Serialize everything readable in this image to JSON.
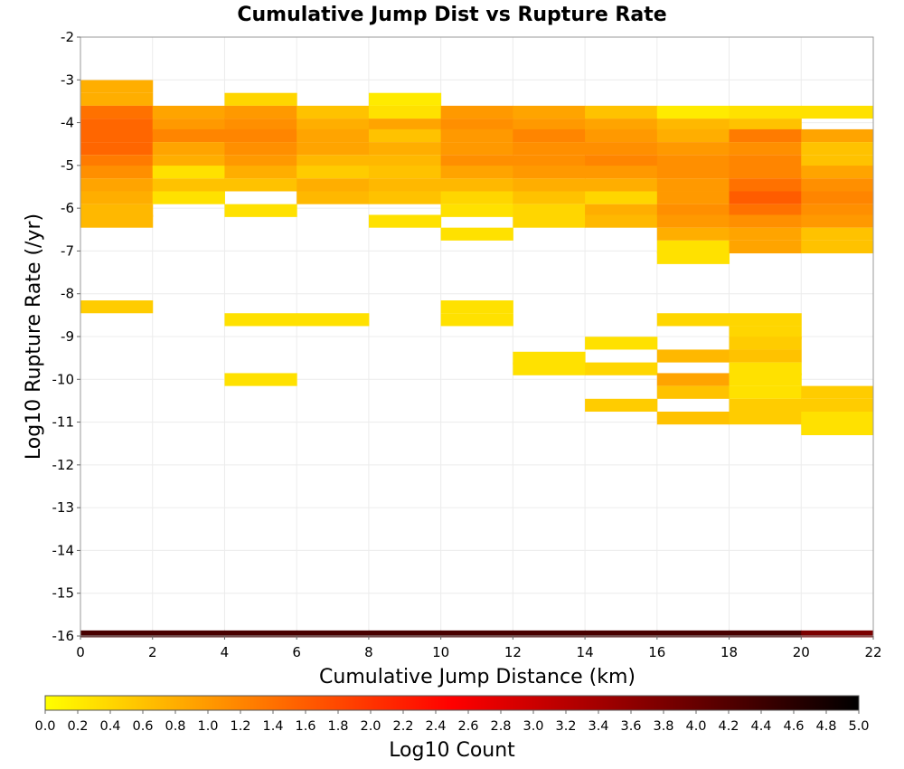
{
  "chart_data": {
    "type": "heatmap",
    "title": "Cumulative Jump Dist vs Rupture Rate",
    "xlabel": "Cumulative Jump Distance (km)",
    "ylabel": "Log10 Rupture Rate (/yr)",
    "xlim": [
      0,
      22
    ],
    "ylim": [
      -16,
      -2
    ],
    "x_ticks": [
      "0",
      "2",
      "4",
      "6",
      "8",
      "10",
      "12",
      "14",
      "16",
      "18",
      "20",
      "22"
    ],
    "y_ticks": [
      "-2",
      "-3",
      "-4",
      "-5",
      "-6",
      "-7",
      "-8",
      "-9",
      "-10",
      "-11",
      "-12",
      "-13",
      "-14",
      "-15",
      "-16"
    ],
    "grid": true,
    "x_bin_width": 2,
    "y_bin_height": 0.29,
    "colorbar": {
      "label": "Log10 Count",
      "range": [
        0,
        5
      ],
      "ticks": [
        "0.0",
        "0.2",
        "0.4",
        "0.6",
        "0.8",
        "1.0",
        "1.2",
        "1.4",
        "1.6",
        "1.8",
        "2.0",
        "2.2",
        "2.4",
        "2.6",
        "2.8",
        "3.0",
        "3.2",
        "3.4",
        "3.6",
        "3.8",
        "4.0",
        "4.2",
        "4.4",
        "4.6",
        "4.8",
        "5.0"
      ],
      "colors": [
        "#ffff00",
        "#ff8000",
        "#ff0000",
        "#800000",
        "#000000"
      ]
    },
    "columns": [
      {
        "x": 0,
        "cells": [
          [
            -3.15,
            0.8
          ],
          [
            -3.45,
            0.8
          ],
          [
            -3.75,
            1.4
          ],
          [
            -4.05,
            1.5
          ],
          [
            -4.3,
            1.5
          ],
          [
            -4.6,
            1.5
          ],
          [
            -4.9,
            1.3
          ],
          [
            -5.15,
            1.1
          ],
          [
            -5.45,
            0.9
          ],
          [
            -5.75,
            0.8
          ],
          [
            -6.05,
            0.7
          ],
          [
            -6.3,
            0.7
          ],
          [
            -8.3,
            0.5
          ]
        ]
      },
      {
        "x": 2,
        "cells": [
          [
            -3.75,
            0.9
          ],
          [
            -4.05,
            1.0
          ],
          [
            -4.3,
            1.2
          ],
          [
            -4.6,
            0.9
          ],
          [
            -4.9,
            0.8
          ],
          [
            -5.15,
            0.3
          ],
          [
            -5.45,
            0.6
          ],
          [
            -5.75,
            0.3
          ]
        ]
      },
      {
        "x": 4,
        "cells": [
          [
            -3.45,
            0.4
          ],
          [
            -3.75,
            1.0
          ],
          [
            -4.05,
            1.1
          ],
          [
            -4.3,
            1.2
          ],
          [
            -4.6,
            1.1
          ],
          [
            -4.9,
            1.0
          ],
          [
            -5.15,
            0.8
          ],
          [
            -5.45,
            0.6
          ],
          [
            -6.05,
            0.3
          ],
          [
            -8.6,
            0.3
          ],
          [
            -10.0,
            0.3
          ]
        ]
      },
      {
        "x": 6,
        "cells": [
          [
            -3.75,
            0.6
          ],
          [
            -4.05,
            0.8
          ],
          [
            -4.3,
            0.9
          ],
          [
            -4.6,
            0.9
          ],
          [
            -4.9,
            0.7
          ],
          [
            -5.15,
            0.5
          ],
          [
            -5.45,
            0.8
          ],
          [
            -5.75,
            0.7
          ],
          [
            -8.6,
            0.3
          ]
        ]
      },
      {
        "x": 8,
        "cells": [
          [
            -3.45,
            0.2
          ],
          [
            -3.75,
            0.3
          ],
          [
            -4.05,
            0.9
          ],
          [
            -4.3,
            0.6
          ],
          [
            -4.6,
            0.8
          ],
          [
            -4.9,
            0.7
          ],
          [
            -5.15,
            0.6
          ],
          [
            -5.45,
            0.7
          ],
          [
            -5.75,
            0.6
          ],
          [
            -6.3,
            0.3
          ]
        ]
      },
      {
        "x": 10,
        "cells": [
          [
            -3.75,
            1.0
          ],
          [
            -4.05,
            1.1
          ],
          [
            -4.3,
            1.0
          ],
          [
            -4.6,
            1.0
          ],
          [
            -4.9,
            1.1
          ],
          [
            -5.15,
            0.9
          ],
          [
            -5.45,
            0.7
          ],
          [
            -5.75,
            0.4
          ],
          [
            -6.05,
            0.3
          ],
          [
            -6.6,
            0.3
          ],
          [
            -8.3,
            0.3
          ],
          [
            -8.6,
            0.3
          ]
        ]
      },
      {
        "x": 12,
        "cells": [
          [
            -3.75,
            0.9
          ],
          [
            -4.05,
            1.0
          ],
          [
            -4.3,
            1.2
          ],
          [
            -4.6,
            1.1
          ],
          [
            -4.9,
            1.1
          ],
          [
            -5.15,
            1.0
          ],
          [
            -5.45,
            0.8
          ],
          [
            -5.75,
            0.6
          ],
          [
            -6.05,
            0.4
          ],
          [
            -6.3,
            0.4
          ],
          [
            -9.5,
            0.3
          ],
          [
            -9.75,
            0.3
          ]
        ]
      },
      {
        "x": 14,
        "cells": [
          [
            -3.75,
            0.6
          ],
          [
            -4.05,
            0.9
          ],
          [
            -4.3,
            1.0
          ],
          [
            -4.6,
            1.1
          ],
          [
            -4.9,
            1.2
          ],
          [
            -5.15,
            1.0
          ],
          [
            -5.45,
            0.8
          ],
          [
            -5.75,
            0.4
          ],
          [
            -6.05,
            0.8
          ],
          [
            -6.3,
            0.7
          ],
          [
            -9.15,
            0.3
          ],
          [
            -9.75,
            0.4
          ],
          [
            -10.6,
            0.5
          ]
        ]
      },
      {
        "x": 16,
        "cells": [
          [
            -3.75,
            0.2
          ],
          [
            -4.05,
            0.7
          ],
          [
            -4.3,
            0.8
          ],
          [
            -4.6,
            1.0
          ],
          [
            -4.9,
            1.1
          ],
          [
            -5.15,
            1.1
          ],
          [
            -5.45,
            1.0
          ],
          [
            -5.75,
            1.0
          ],
          [
            -6.05,
            1.1
          ],
          [
            -6.3,
            1.0
          ],
          [
            -6.6,
            0.8
          ],
          [
            -6.9,
            0.3
          ],
          [
            -7.15,
            0.3
          ],
          [
            -8.6,
            0.4
          ],
          [
            -9.45,
            0.7
          ],
          [
            -10.0,
            0.9
          ],
          [
            -10.3,
            0.6
          ],
          [
            -10.9,
            0.6
          ]
        ]
      },
      {
        "x": 18,
        "cells": [
          [
            -3.75,
            0.3
          ],
          [
            -4.05,
            0.6
          ],
          [
            -4.3,
            1.3
          ],
          [
            -4.6,
            1.1
          ],
          [
            -4.9,
            1.2
          ],
          [
            -5.15,
            1.2
          ],
          [
            -5.45,
            1.4
          ],
          [
            -5.75,
            1.6
          ],
          [
            -6.05,
            1.4
          ],
          [
            -6.3,
            1.1
          ],
          [
            -6.6,
            0.9
          ],
          [
            -6.9,
            0.9
          ],
          [
            -8.6,
            0.4
          ],
          [
            -8.9,
            0.4
          ],
          [
            -9.15,
            0.5
          ],
          [
            -9.45,
            0.6
          ],
          [
            -9.75,
            0.3
          ],
          [
            -10.0,
            0.3
          ],
          [
            -10.3,
            0.3
          ],
          [
            -10.6,
            0.5
          ],
          [
            -10.9,
            0.5
          ]
        ]
      },
      {
        "x": 20,
        "cells": [
          [
            -3.75,
            0.3
          ],
          [
            -4.3,
            0.9
          ],
          [
            -4.6,
            0.6
          ],
          [
            -4.9,
            0.6
          ],
          [
            -5.15,
            0.9
          ],
          [
            -5.45,
            1.1
          ],
          [
            -5.75,
            1.2
          ],
          [
            -6.05,
            1.1
          ],
          [
            -6.3,
            1.0
          ],
          [
            -6.6,
            0.6
          ],
          [
            -6.9,
            0.6
          ],
          [
            -10.3,
            0.5
          ],
          [
            -10.6,
            0.5
          ],
          [
            -10.9,
            0.3
          ],
          [
            -11.15,
            0.3
          ]
        ]
      }
    ],
    "baseline": {
      "y": -15.95,
      "values": [
        4.3,
        4.3,
        4.3,
        4.3,
        4.3,
        4.3,
        4.3,
        4.3,
        4.3,
        4.3,
        3.8
      ]
    }
  }
}
